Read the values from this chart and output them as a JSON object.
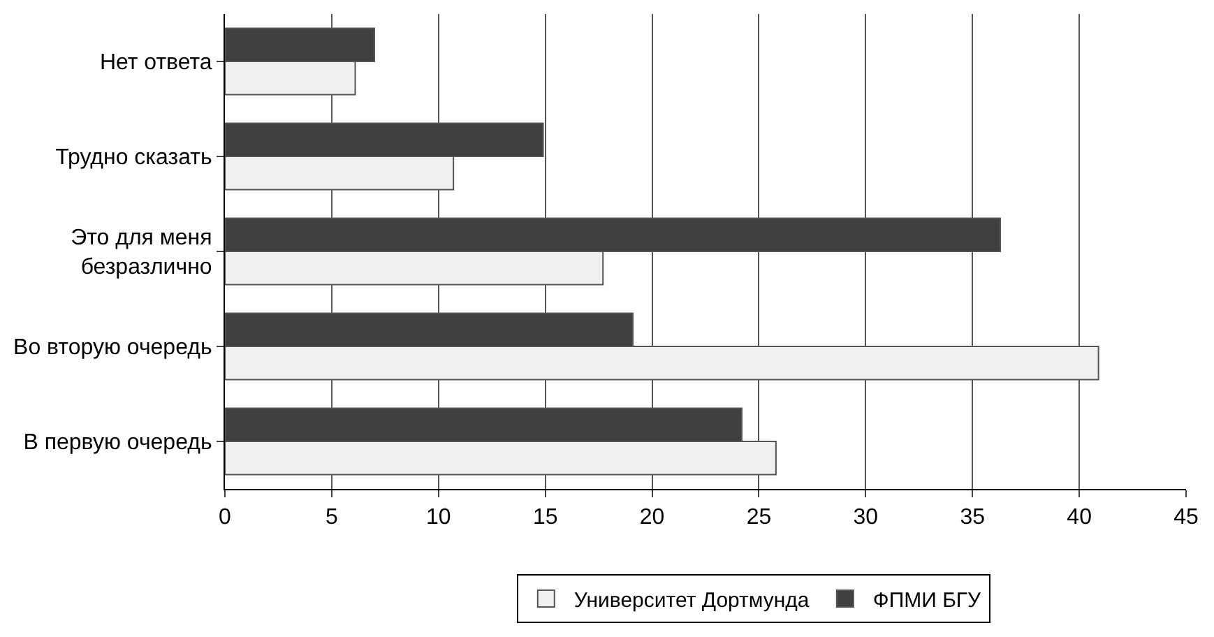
{
  "chart_data": {
    "type": "bar",
    "orientation": "horizontal",
    "categories": [
      "Нет ответа",
      "Трудно сказать",
      "Это для меня\nбезразлично",
      "Во вторую очередь",
      "В первую очередь"
    ],
    "series": [
      {
        "name": "Университет Дортмунда",
        "color": "#f0f0f0",
        "values": [
          6.1,
          10.7,
          17.7,
          40.9,
          25.8
        ]
      },
      {
        "name": "ФПМИ БГУ",
        "color": "#404040",
        "values": [
          7.0,
          14.9,
          36.3,
          19.1,
          24.2
        ]
      }
    ],
    "xlim": [
      0,
      45
    ],
    "xticks": [
      0,
      5,
      10,
      15,
      20,
      25,
      30,
      35,
      40,
      45
    ],
    "grid": "x",
    "legend": "bottom"
  }
}
